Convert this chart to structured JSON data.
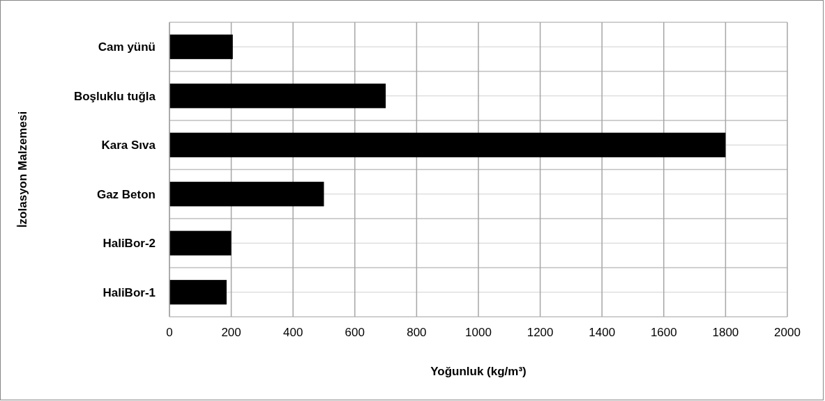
{
  "chart_data": {
    "type": "bar",
    "orientation": "horizontal",
    "xlabel": "Yoğunluk (kg/m³)",
    "ylabel": "İzolasyon Malzemesi",
    "categories": [
      "Cam yünü",
      "Boşluklu tuğla",
      "Kara Sıva",
      "Gaz Beton",
      "HaliBor-2",
      "HaliBor-1"
    ],
    "values": [
      205,
      700,
      1800,
      500,
      200,
      185
    ],
    "color": "#000000",
    "xlim": [
      0,
      2000
    ],
    "xticks": [
      0,
      200,
      400,
      600,
      800,
      1000,
      1200,
      1400,
      1600,
      1800,
      2000
    ],
    "grid": true
  }
}
